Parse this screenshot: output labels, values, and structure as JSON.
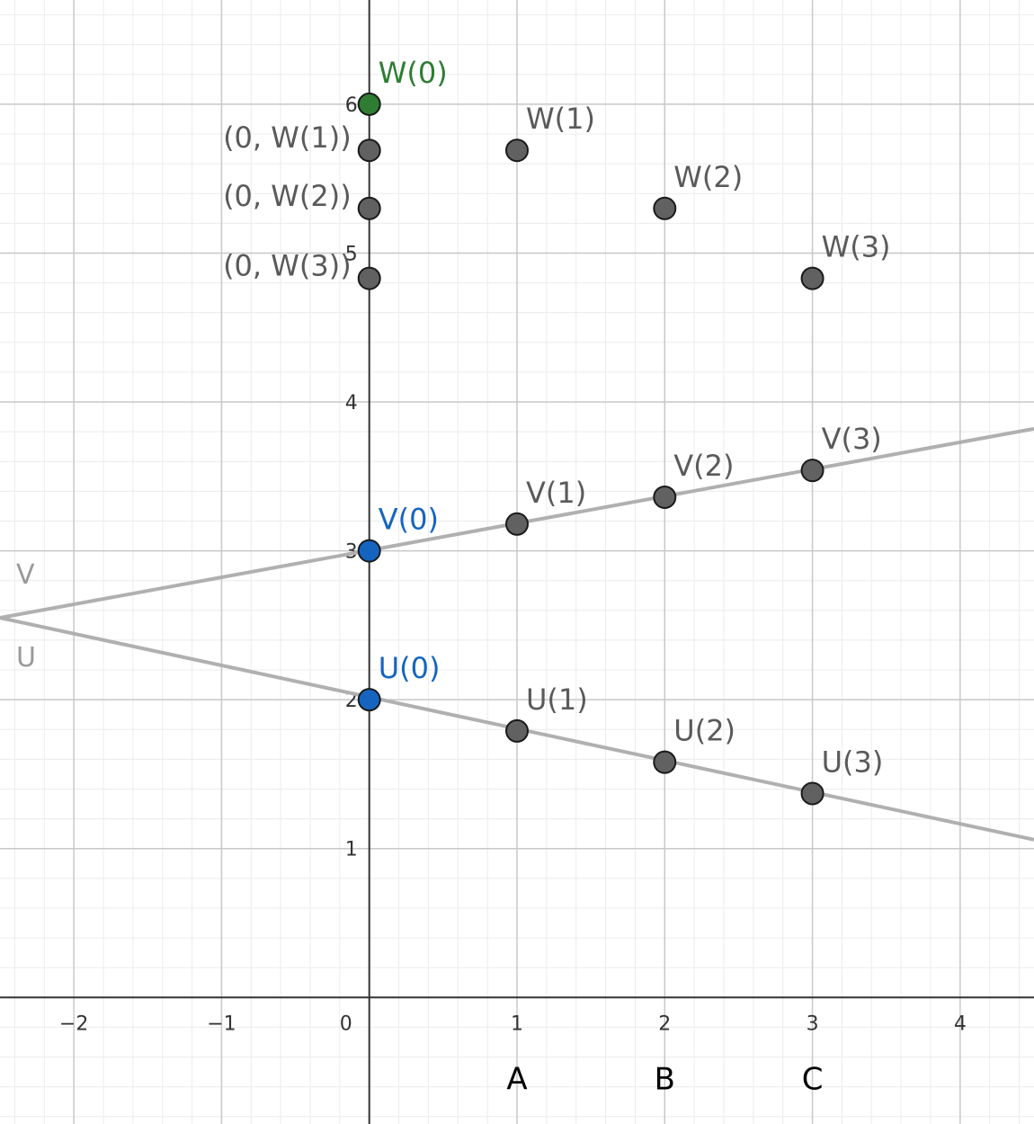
{
  "chart_data": {
    "type": "scatter",
    "xlim": [
      -2.5,
      4.5
    ],
    "ylim": [
      -0.85,
      6.7
    ],
    "grid": true,
    "minor_grid": true,
    "x_ticks": [
      -2,
      -1,
      0,
      1,
      2,
      3,
      4
    ],
    "x_tick_labels": [
      "−2",
      "−1",
      "0",
      "1",
      "2",
      "3",
      "4"
    ],
    "y_ticks": [
      1,
      2,
      3,
      4,
      5,
      6
    ],
    "y_tick_labels": [
      "1",
      "2",
      "3",
      "4",
      "5",
      "6"
    ],
    "colors": {
      "default_point": "#616161",
      "blue": "#1565c0",
      "green": "#2e7d32",
      "line": "#b0b0b0",
      "label_default": "#5a5a5a",
      "label_blue": "#1565c0",
      "label_green": "#2e7d32"
    },
    "lines": [
      {
        "name": "V",
        "x": [
          -2.5,
          4.5
        ],
        "y": [
          2.55,
          3.82
        ]
      },
      {
        "name": "U",
        "x": [
          -2.5,
          4.5
        ],
        "y": [
          2.55,
          1.06
        ]
      }
    ],
    "points": [
      {
        "label": "W(0)",
        "x": 0,
        "y": 6.0,
        "color": "green"
      },
      {
        "label": "(0, W(1))",
        "x": 0,
        "y": 5.69,
        "color": "default",
        "label_side": "left"
      },
      {
        "label": "(0, W(2))",
        "x": 0,
        "y": 5.3,
        "color": "default",
        "label_side": "left"
      },
      {
        "label": "(0, W(3))",
        "x": 0,
        "y": 4.83,
        "color": "default",
        "label_side": "left"
      },
      {
        "label": "W(1)",
        "x": 1,
        "y": 5.69,
        "color": "default"
      },
      {
        "label": "W(2)",
        "x": 2,
        "y": 5.3,
        "color": "default"
      },
      {
        "label": "W(3)",
        "x": 3,
        "y": 4.83,
        "color": "default"
      },
      {
        "label": "V(0)",
        "x": 0,
        "y": 3.0,
        "color": "blue"
      },
      {
        "label": "V(1)",
        "x": 1,
        "y": 3.18,
        "color": "default"
      },
      {
        "label": "V(2)",
        "x": 2,
        "y": 3.36,
        "color": "default"
      },
      {
        "label": "V(3)",
        "x": 3,
        "y": 3.54,
        "color": "default"
      },
      {
        "label": "U(0)",
        "x": 0,
        "y": 2.0,
        "color": "blue"
      },
      {
        "label": "U(1)",
        "x": 1,
        "y": 1.79,
        "color": "default"
      },
      {
        "label": "U(2)",
        "x": 2,
        "y": 1.58,
        "color": "default"
      },
      {
        "label": "U(3)",
        "x": 3,
        "y": 1.37,
        "color": "default"
      }
    ],
    "column_labels": [
      {
        "text": "A",
        "x": 1
      },
      {
        "text": "B",
        "x": 2
      },
      {
        "text": "C",
        "x": 3
      }
    ]
  }
}
